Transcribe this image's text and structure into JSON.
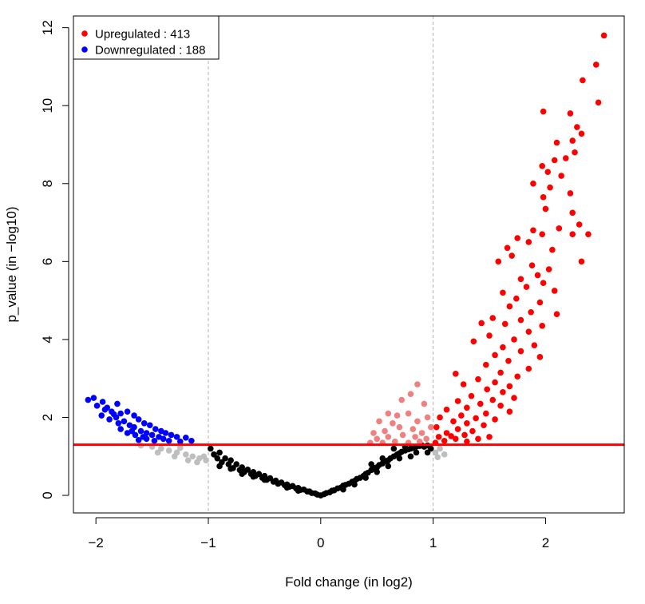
{
  "chart_data": {
    "type": "scatter",
    "title": "",
    "xlabel": "Fold change (in log2)",
    "ylabel": "p_value (in −log10)",
    "xlim": [
      -2.2,
      2.7
    ],
    "ylim": [
      -0.45,
      12.3
    ],
    "x_ticks": [
      -2,
      -1,
      0,
      1,
      2
    ],
    "x_tick_labels": [
      "−2",
      "−1",
      "0",
      "1",
      "2"
    ],
    "y_ticks": [
      0,
      2,
      4,
      6,
      8,
      10,
      12
    ],
    "y_tick_labels": [
      "0",
      "2",
      "4",
      "6",
      "8",
      "10",
      "12"
    ],
    "vertical_lines": [
      -1,
      1
    ],
    "horizontal_line": 1.3,
    "grid": false,
    "legend_position": "top-left",
    "legend": [
      {
        "label": "Upregulated : 413",
        "color": "#ff0000"
      },
      {
        "label": "Downregulated : 188",
        "color": "#0000ff"
      }
    ],
    "colors": {
      "upregulated": "#ff0000",
      "downregulated": "#0000ff",
      "significant_small_fc": "#f08080",
      "small_fc_gray": "#bebebe",
      "not_significant": "#000000",
      "threshold_line": "#ff0000",
      "fold_change_lines": "#b3b3b3"
    },
    "series": [
      {
        "group": "upregulated",
        "points": [
          [
            2.52,
            11.8
          ],
          [
            2.45,
            11.05
          ],
          [
            2.33,
            10.65
          ],
          [
            2.47,
            10.08
          ],
          [
            1.98,
            9.85
          ],
          [
            2.22,
            9.8
          ],
          [
            2.28,
            9.45
          ],
          [
            2.32,
            9.28
          ],
          [
            2.24,
            9.1
          ],
          [
            2.1,
            9.05
          ],
          [
            2.26,
            8.8
          ],
          [
            2.18,
            8.65
          ],
          [
            2.08,
            8.6
          ],
          [
            1.97,
            8.45
          ],
          [
            2.02,
            8.3
          ],
          [
            2.14,
            8.2
          ],
          [
            1.89,
            8.0
          ],
          [
            2.04,
            7.9
          ],
          [
            2.22,
            7.75
          ],
          [
            1.98,
            7.65
          ],
          [
            2.0,
            7.35
          ],
          [
            2.24,
            7.25
          ],
          [
            2.3,
            6.95
          ],
          [
            2.12,
            6.85
          ],
          [
            1.89,
            6.8
          ],
          [
            2.38,
            6.7
          ],
          [
            2.24,
            6.7
          ],
          [
            1.97,
            6.7
          ],
          [
            1.75,
            6.6
          ],
          [
            1.85,
            6.5
          ],
          [
            1.66,
            6.35
          ],
          [
            2.06,
            6.3
          ],
          [
            1.7,
            6.15
          ],
          [
            1.58,
            6.0
          ],
          [
            2.32,
            6.0
          ],
          [
            1.88,
            5.9
          ],
          [
            2.03,
            5.8
          ],
          [
            1.93,
            5.65
          ],
          [
            1.78,
            5.55
          ],
          [
            1.98,
            5.45
          ],
          [
            1.83,
            5.35
          ],
          [
            2.08,
            5.25
          ],
          [
            1.62,
            5.2
          ],
          [
            1.74,
            5.05
          ],
          [
            1.95,
            4.95
          ],
          [
            1.68,
            4.85
          ],
          [
            1.87,
            4.7
          ],
          [
            2.1,
            4.65
          ],
          [
            1.53,
            4.55
          ],
          [
            1.78,
            4.5
          ],
          [
            1.43,
            4.42
          ],
          [
            1.64,
            4.4
          ],
          [
            1.97,
            4.35
          ],
          [
            1.85,
            4.2
          ],
          [
            1.5,
            4.1
          ],
          [
            1.72,
            4.0
          ],
          [
            1.36,
            3.95
          ],
          [
            1.9,
            3.85
          ],
          [
            1.62,
            3.8
          ],
          [
            1.78,
            3.7
          ],
          [
            1.55,
            3.6
          ],
          [
            1.95,
            3.55
          ],
          [
            1.67,
            3.45
          ],
          [
            1.47,
            3.35
          ],
          [
            1.85,
            3.25
          ],
          [
            1.6,
            3.15
          ],
          [
            1.2,
            3.12
          ],
          [
            1.75,
            3.05
          ],
          [
            1.4,
            2.98
          ],
          [
            1.55,
            2.9
          ],
          [
            1.27,
            2.85
          ],
          [
            1.68,
            2.8
          ],
          [
            1.48,
            2.72
          ],
          [
            1.62,
            2.65
          ],
          [
            1.34,
            2.55
          ],
          [
            1.72,
            2.5
          ],
          [
            1.53,
            2.45
          ],
          [
            1.22,
            2.42
          ],
          [
            1.42,
            2.35
          ],
          [
            1.6,
            2.3
          ],
          [
            1.3,
            2.25
          ],
          [
            1.12,
            2.2
          ],
          [
            1.68,
            2.15
          ],
          [
            1.47,
            2.1
          ],
          [
            1.25,
            2.05
          ],
          [
            1.06,
            2.0
          ],
          [
            1.38,
            1.98
          ],
          [
            1.55,
            1.95
          ],
          [
            1.18,
            1.9
          ],
          [
            1.3,
            1.85
          ],
          [
            1.45,
            1.8
          ],
          [
            1.03,
            1.75
          ],
          [
            1.22,
            1.7
          ],
          [
            1.35,
            1.65
          ],
          [
            1.12,
            1.6
          ],
          [
            1.28,
            1.55
          ],
          [
            1.05,
            1.5
          ],
          [
            1.2,
            1.45
          ],
          [
            1.4,
            1.45
          ],
          [
            1.1,
            1.4
          ],
          [
            1.3,
            1.38
          ],
          [
            1.02,
            1.35
          ],
          [
            1.5,
            1.5
          ],
          [
            1.16,
            1.52
          ]
        ]
      },
      {
        "group": "downregulated",
        "points": [
          [
            -2.02,
            2.5
          ],
          [
            -2.07,
            2.45
          ],
          [
            -1.94,
            2.4
          ],
          [
            -1.99,
            2.3
          ],
          [
            -1.81,
            2.35
          ],
          [
            -1.92,
            2.2
          ],
          [
            -1.86,
            2.15
          ],
          [
            -1.95,
            2.05
          ],
          [
            -1.78,
            2.1
          ],
          [
            -1.72,
            2.15
          ],
          [
            -1.82,
            2.0
          ],
          [
            -1.66,
            2.05
          ],
          [
            -1.88,
            1.95
          ],
          [
            -1.75,
            1.9
          ],
          [
            -1.62,
            1.95
          ],
          [
            -1.8,
            1.85
          ],
          [
            -1.7,
            1.8
          ],
          [
            -1.57,
            1.85
          ],
          [
            -1.66,
            1.75
          ],
          [
            -1.52,
            1.8
          ],
          [
            -1.78,
            1.7
          ],
          [
            -1.6,
            1.65
          ],
          [
            -1.47,
            1.7
          ],
          [
            -1.72,
            1.6
          ],
          [
            -1.55,
            1.6
          ],
          [
            -1.42,
            1.65
          ],
          [
            -1.65,
            1.55
          ],
          [
            -1.5,
            1.55
          ],
          [
            -1.38,
            1.6
          ],
          [
            -1.58,
            1.5
          ],
          [
            -1.44,
            1.5
          ],
          [
            -1.33,
            1.55
          ],
          [
            -1.55,
            1.45
          ],
          [
            -1.4,
            1.45
          ],
          [
            -1.28,
            1.5
          ],
          [
            -1.48,
            1.4
          ],
          [
            -1.35,
            1.4
          ],
          [
            -1.2,
            1.48
          ],
          [
            -1.25,
            1.38
          ],
          [
            -1.15,
            1.4
          ],
          [
            -1.62,
            1.42
          ],
          [
            -1.68,
            1.65
          ],
          [
            -1.84,
            2.08
          ],
          [
            -1.9,
            2.25
          ]
        ]
      },
      {
        "group": "significant_small_fc",
        "points": [
          [
            0.86,
            2.85
          ],
          [
            0.8,
            2.6
          ],
          [
            0.72,
            2.45
          ],
          [
            0.92,
            2.35
          ],
          [
            0.6,
            2.1
          ],
          [
            0.68,
            2.05
          ],
          [
            0.78,
            2.1
          ],
          [
            0.52,
            1.9
          ],
          [
            0.64,
            1.85
          ],
          [
            0.86,
            1.9
          ],
          [
            0.95,
            2.0
          ],
          [
            0.47,
            1.6
          ],
          [
            0.57,
            1.65
          ],
          [
            0.7,
            1.75
          ],
          [
            0.82,
            1.7
          ],
          [
            0.9,
            1.6
          ],
          [
            0.98,
            1.75
          ],
          [
            0.5,
            1.45
          ],
          [
            0.6,
            1.5
          ],
          [
            0.73,
            1.55
          ],
          [
            0.84,
            1.5
          ],
          [
            0.94,
            1.45
          ],
          [
            0.44,
            1.35
          ],
          [
            0.66,
            1.38
          ],
          [
            0.78,
            1.35
          ],
          [
            0.88,
            1.38
          ],
          [
            0.55,
            1.35
          ]
        ]
      },
      {
        "group": "small_fc_gray",
        "points": [
          [
            -1.5,
            1.25
          ],
          [
            -1.42,
            1.2
          ],
          [
            -1.35,
            1.15
          ],
          [
            -1.28,
            1.1
          ],
          [
            -1.2,
            1.05
          ],
          [
            -1.14,
            1.0
          ],
          [
            -1.08,
            0.95
          ],
          [
            -1.02,
            0.9
          ],
          [
            -1.45,
            1.1
          ],
          [
            -1.3,
            1.0
          ],
          [
            -1.18,
            0.9
          ],
          [
            -1.1,
            0.85
          ],
          [
            -1.6,
            1.28
          ],
          [
            -1.25,
            1.22
          ],
          [
            -1.04,
            1.0
          ],
          [
            1.02,
            1.1
          ],
          [
            1.06,
            1.2
          ],
          [
            1.1,
            1.05
          ],
          [
            1.04,
            0.98
          ]
        ]
      },
      {
        "group": "not_significant",
        "points": [
          [
            -0.98,
            1.2
          ],
          [
            -0.95,
            1.05
          ],
          [
            -0.92,
            0.95
          ],
          [
            -0.9,
            1.1
          ],
          [
            -0.88,
            0.85
          ],
          [
            -0.85,
            0.95
          ],
          [
            -0.82,
            0.8
          ],
          [
            -0.8,
            0.9
          ],
          [
            -0.78,
            0.7
          ],
          [
            -0.75,
            0.8
          ],
          [
            -0.72,
            0.65
          ],
          [
            -0.7,
            0.72
          ],
          [
            -0.68,
            0.6
          ],
          [
            -0.65,
            0.66
          ],
          [
            -0.62,
            0.55
          ],
          [
            -0.6,
            0.6
          ],
          [
            -0.58,
            0.5
          ],
          [
            -0.55,
            0.55
          ],
          [
            -0.52,
            0.45
          ],
          [
            -0.5,
            0.5
          ],
          [
            -0.48,
            0.4
          ],
          [
            -0.45,
            0.44
          ],
          [
            -0.42,
            0.35
          ],
          [
            -0.4,
            0.38
          ],
          [
            -0.38,
            0.3
          ],
          [
            -0.35,
            0.33
          ],
          [
            -0.32,
            0.26
          ],
          [
            -0.3,
            0.28
          ],
          [
            -0.28,
            0.22
          ],
          [
            -0.25,
            0.24
          ],
          [
            -0.22,
            0.18
          ],
          [
            -0.2,
            0.19
          ],
          [
            -0.18,
            0.14
          ],
          [
            -0.15,
            0.15
          ],
          [
            -0.12,
            0.1
          ],
          [
            -0.1,
            0.1
          ],
          [
            -0.08,
            0.06
          ],
          [
            -0.05,
            0.05
          ],
          [
            -0.03,
            0.02
          ],
          [
            0.0,
            0.0
          ],
          [
            0.03,
            0.03
          ],
          [
            0.05,
            0.06
          ],
          [
            0.08,
            0.08
          ],
          [
            0.1,
            0.12
          ],
          [
            0.12,
            0.13
          ],
          [
            0.15,
            0.18
          ],
          [
            0.18,
            0.2
          ],
          [
            0.2,
            0.25
          ],
          [
            0.22,
            0.27
          ],
          [
            0.25,
            0.3
          ],
          [
            0.28,
            0.35
          ],
          [
            0.3,
            0.37
          ],
          [
            0.32,
            0.42
          ],
          [
            0.35,
            0.45
          ],
          [
            0.38,
            0.5
          ],
          [
            0.4,
            0.55
          ],
          [
            0.42,
            0.58
          ],
          [
            0.45,
            0.65
          ],
          [
            0.48,
            0.7
          ],
          [
            0.5,
            0.72
          ],
          [
            0.52,
            0.78
          ],
          [
            0.55,
            0.82
          ],
          [
            0.58,
            0.88
          ],
          [
            0.6,
            0.9
          ],
          [
            0.62,
            0.95
          ],
          [
            0.65,
            1.0
          ],
          [
            0.68,
            1.05
          ],
          [
            0.7,
            1.08
          ],
          [
            0.72,
            1.12
          ],
          [
            0.75,
            1.15
          ],
          [
            0.78,
            1.18
          ],
          [
            0.8,
            1.2
          ],
          [
            0.82,
            1.22
          ],
          [
            0.85,
            1.25
          ],
          [
            0.88,
            1.27
          ],
          [
            0.9,
            1.28
          ],
          [
            0.92,
            1.25
          ],
          [
            0.95,
            1.28
          ],
          [
            0.98,
            1.2
          ],
          [
            -0.9,
            0.75
          ],
          [
            -0.7,
            0.55
          ],
          [
            -0.5,
            0.4
          ],
          [
            -0.3,
            0.2
          ],
          [
            0.3,
            0.28
          ],
          [
            0.5,
            0.6
          ],
          [
            0.7,
            0.95
          ],
          [
            0.85,
            1.1
          ],
          [
            0.4,
            0.45
          ],
          [
            0.6,
            0.75
          ],
          [
            0.8,
            1.0
          ],
          [
            0.95,
            1.1
          ],
          [
            0.2,
            0.15
          ],
          [
            -0.2,
            0.12
          ],
          [
            -0.6,
            0.48
          ],
          [
            -0.8,
            0.68
          ],
          [
            0.45,
            0.8
          ],
          [
            0.65,
            1.2
          ],
          [
            0.75,
            1.25
          ],
          [
            0.55,
            0.95
          ]
        ]
      }
    ]
  }
}
